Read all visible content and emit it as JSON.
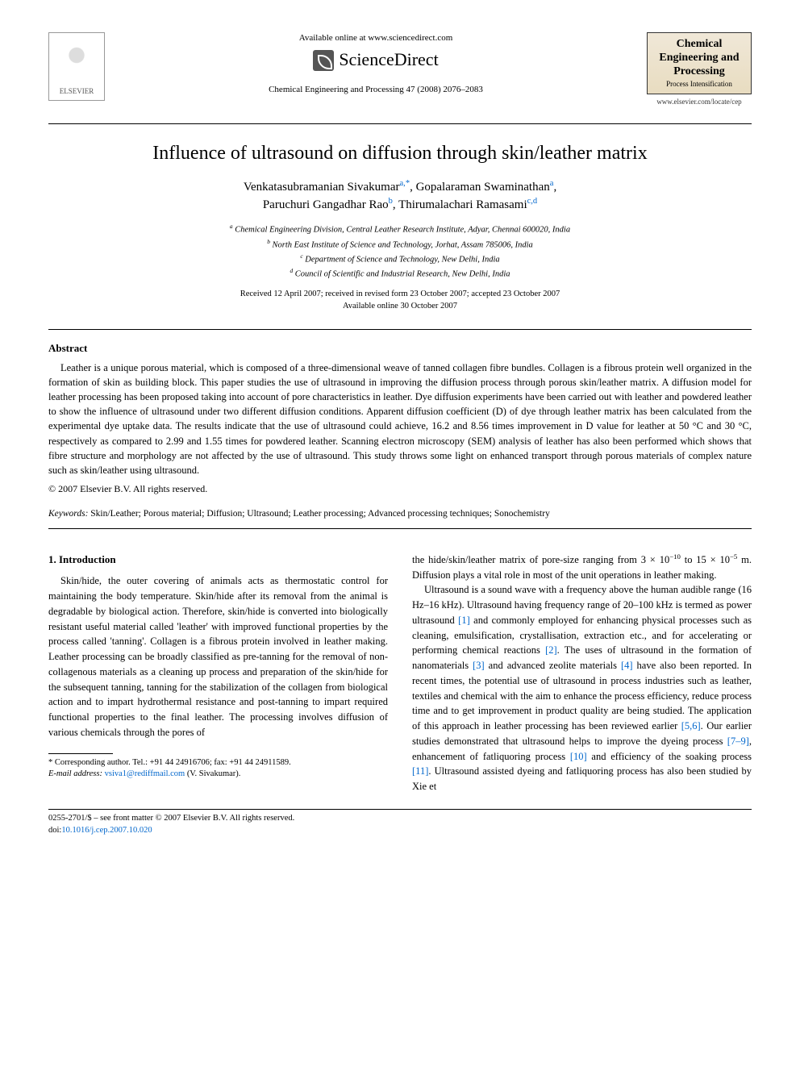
{
  "header": {
    "publisher_name": "ELSEVIER",
    "available_text": "Available online at www.sciencedirect.com",
    "sd_name": "ScienceDirect",
    "journal_ref": "Chemical Engineering and Processing 47 (2008) 2076–2083",
    "journal_cover_title": "Chemical Engineering and Processing",
    "journal_cover_sub": "Process Intensification",
    "journal_url": "www.elsevier.com/locate/cep"
  },
  "article": {
    "title": "Influence of ultrasound on diffusion through skin/leather matrix",
    "authors_line1_name1": "Venkatasubramanian Sivakumar",
    "authors_line1_aff1": "a,",
    "authors_line1_corr": "*",
    "authors_line1_name2": ", Gopalaraman Swaminathan",
    "authors_line1_aff2": "a",
    "authors_line2_name1": "Paruchuri Gangadhar Rao",
    "authors_line2_aff1": "b",
    "authors_line2_name2": ", Thirumalachari Ramasami",
    "authors_line2_aff2": "c,d",
    "affiliations": {
      "a": "Chemical Engineering Division, Central Leather Research Institute, Adyar, Chennai 600020, India",
      "b": "North East Institute of Science and Technology, Jorhat, Assam 785006, India",
      "c": "Department of Science and Technology, New Delhi, India",
      "d": "Council of Scientific and Industrial Research, New Delhi, India"
    },
    "received": "Received 12 April 2007; received in revised form 23 October 2007; accepted 23 October 2007",
    "available_online": "Available online 30 October 2007"
  },
  "abstract": {
    "heading": "Abstract",
    "body": "Leather is a unique porous material, which is composed of a three-dimensional weave of tanned collagen fibre bundles. Collagen is a fibrous protein well organized in the formation of skin as building block. This paper studies the use of ultrasound in improving the diffusion process through porous skin/leather matrix. A diffusion model for leather processing has been proposed taking into account of pore characteristics in leather. Dye diffusion experiments have been carried out with leather and powdered leather to show the influence of ultrasound under two different diffusion conditions. Apparent diffusion coefficient (D) of dye through leather matrix has been calculated from the experimental dye uptake data. The results indicate that the use of ultrasound could achieve, 16.2 and 8.56 times improvement in D value for leather at 50 °C and 30 °C, respectively as compared to 2.99 and 1.55 times for powdered leather. Scanning electron microscopy (SEM) analysis of leather has also been performed which shows that fibre structure and morphology are not affected by the use of ultrasound. This study throws some light on enhanced transport through porous materials of complex nature such as skin/leather using ultrasound.",
    "copyright": "© 2007 Elsevier B.V. All rights reserved."
  },
  "keywords": {
    "label": "Keywords:",
    "list": "Skin/Leather; Porous material; Diffusion; Ultrasound; Leather processing; Advanced processing techniques; Sonochemistry"
  },
  "introduction": {
    "heading": "1.  Introduction",
    "col1_p1_a": "Skin/hide, the outer covering of animals acts as thermostatic control for maintaining the body temperature. Skin/hide after its removal from the animal is degradable by biological action. Therefore, skin/hide is converted into biologically resistant useful material called 'leather' with improved functional properties by the process called 'tanning'. Collagen is a fibrous protein involved in leather making. Leather processing can be broadly classified as pre-tanning for the removal of non-collagenous materials as a cleaning up process and preparation of the skin/hide for the subsequent tanning, tanning for the stabilization of the collagen from biological action and to impart hydrothermal resistance and post-tanning to impart required functional properties to the final leather. The processing involves diffusion of various chemicals through the pores of",
    "col2_p1_a": "the hide/skin/leather matrix of pore-size ranging from 3 × 10",
    "col2_p1_sup1": "−10",
    "col2_p1_b": " to 15 × 10",
    "col2_p1_sup2": "−5",
    "col2_p1_c": " m. Diffusion plays a vital role in most of the unit operations in leather making.",
    "col2_p2_a": "Ultrasound is a sound wave with a frequency above the human audible range (16 Hz–16 kHz). Ultrasound having frequency range of 20–100 kHz is termed as power ultrasound ",
    "ref1": "[1]",
    "col2_p2_b": " and commonly employed for enhancing physical processes such as cleaning, emulsification, crystallisation, extraction etc., and for accelerating or performing chemical reactions ",
    "ref2": "[2]",
    "col2_p2_c": ". The uses of ultrasound in the formation of nanomaterials ",
    "ref3": "[3]",
    "col2_p2_d": " and advanced zeolite materials ",
    "ref4": "[4]",
    "col2_p2_e": " have also been reported. In recent times, the potential use of ultrasound in process industries such as leather, textiles and chemical with the aim to enhance the process efficiency, reduce process time and to get improvement in product quality are being studied. The application of this approach in leather processing has been reviewed earlier ",
    "ref56": "[5,6]",
    "col2_p2_f": ". Our earlier studies demonstrated that ultrasound helps to improve the dyeing process ",
    "ref79": "[7–9]",
    "col2_p2_g": ", enhancement of fatliquoring process ",
    "ref10": "[10]",
    "col2_p2_h": " and efficiency of the soaking process ",
    "ref11": "[11]",
    "col2_p2_i": ". Ultrasound assisted dyeing and fatliquoring process has also been studied by Xie et"
  },
  "footnote": {
    "corr": "* Corresponding author. Tel.: +91 44 24916706; fax: +91 44 24911589.",
    "email_label": "E-mail address:",
    "email": "vsiva1@rediffmail.com",
    "email_suffix": " (V. Sivakumar)."
  },
  "bottom": {
    "line1": "0255-2701/$ – see front matter © 2007 Elsevier B.V. All rights reserved.",
    "doi_label": "doi:",
    "doi": "10.1016/j.cep.2007.10.020"
  },
  "style": {
    "link_color": "#0066cc",
    "text_color": "#000000",
    "page_bg": "#ffffff"
  }
}
